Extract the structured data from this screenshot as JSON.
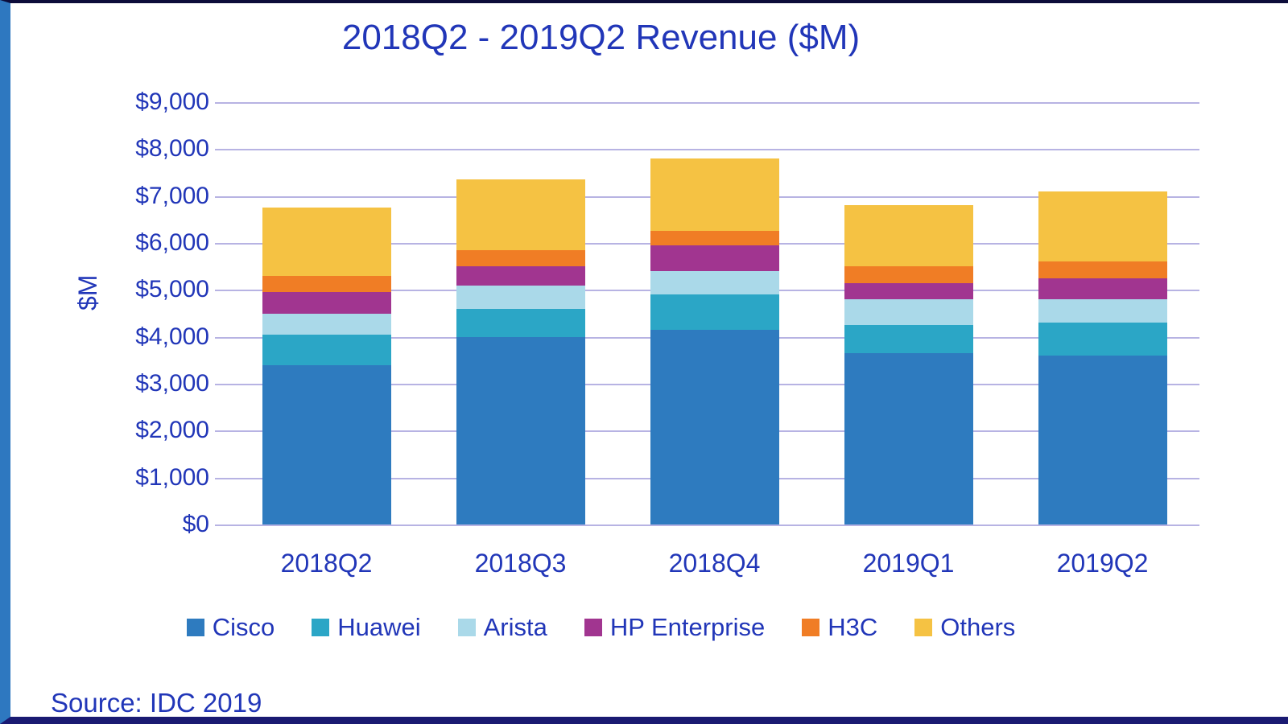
{
  "chart_data": {
    "type": "stacked-bar",
    "title": "2018Q2 - 2019Q2 Revenue ($M)",
    "ylabel": "$M",
    "source": "Source: IDC 2019",
    "categories": [
      "2018Q2",
      "2018Q3",
      "2018Q4",
      "2019Q1",
      "2019Q2"
    ],
    "series": [
      {
        "name": "Cisco",
        "color": "#2e7bbf",
        "values": [
          3400,
          4000,
          4150,
          3650,
          3600
        ]
      },
      {
        "name": "Huawei",
        "color": "#2ba6c6",
        "values": [
          650,
          600,
          750,
          600,
          700
        ]
      },
      {
        "name": "Arista",
        "color": "#aad9e9",
        "values": [
          450,
          500,
          500,
          550,
          500
        ]
      },
      {
        "name": "HP Enterprise",
        "color": "#a13590",
        "values": [
          450,
          400,
          550,
          350,
          450
        ]
      },
      {
        "name": "H3C",
        "color": "#f07d25",
        "values": [
          350,
          350,
          300,
          350,
          350
        ]
      },
      {
        "name": "Others",
        "color": "#f5c243",
        "values": [
          1450,
          1500,
          1550,
          1300,
          1500
        ]
      }
    ],
    "ylim": [
      0,
      9000
    ],
    "y_tick_step": 1000,
    "y_tick_labels": [
      "$0",
      "$1,000",
      "$2,000",
      "$3,000",
      "$4,000",
      "$5,000",
      "$6,000",
      "$7,000",
      "$8,000",
      "$9,000"
    ],
    "grid": "horizontal",
    "legend_position": "bottom"
  }
}
